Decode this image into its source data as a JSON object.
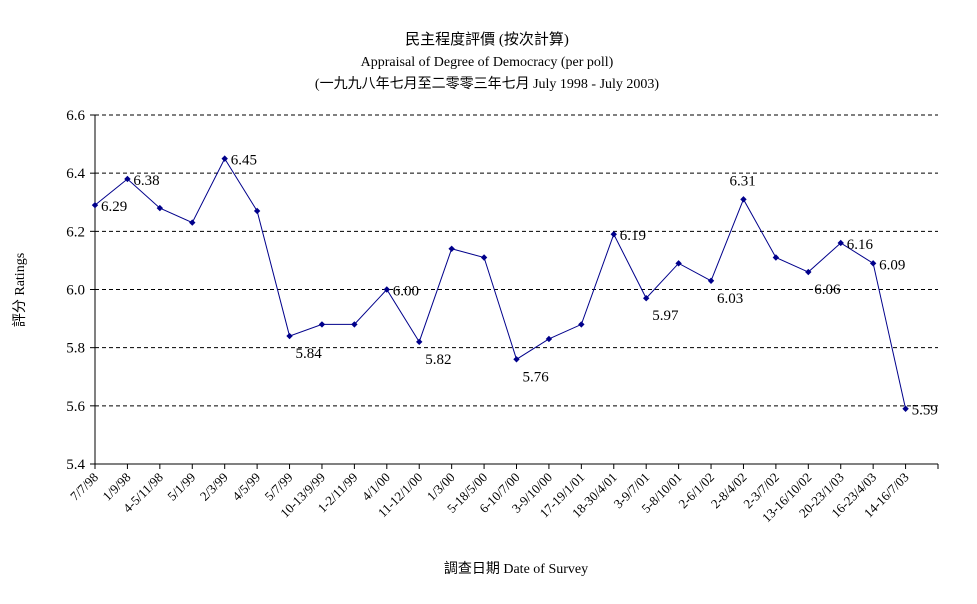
{
  "chart_data": {
    "type": "line",
    "title": "民主程度評價 (按次計算)",
    "subtitle": "Appraisal of Degree of Democracy (per poll)",
    "subtitle2": "(一九九八年七月至二零零三年七月 July 1998 - July 2003)",
    "xlabel": "調查日期 Date of Survey",
    "ylabel": "評分 Ratings",
    "ylim": [
      5.4,
      6.6
    ],
    "yticks": [
      "5.4",
      "5.6",
      "5.8",
      "6.0",
      "6.2",
      "6.4",
      "6.6"
    ],
    "grid": "horizontal-dashed",
    "legend": "none",
    "line_color": "#00008b",
    "categories": [
      "7/7/98",
      "1/9/98",
      "4-5/11/98",
      "5/1/99",
      "2/3/99",
      "4/5/99",
      "5/7/99",
      "10-13/9/99",
      "1-2/11/99",
      "4/1/00",
      "11-12/1/00",
      "1/3/00",
      "5-18/5/00",
      "6-10/7/00",
      "3-9/10/00",
      "17-19/1/01",
      "18-30/4/01",
      "3-9/7/01",
      "5-8/10/01",
      "2-6/1/02",
      "2-8/4/02",
      "2-3/7/02",
      "13-16/10/02",
      "20-23/1/03",
      "16-23/4/03",
      "14-16/7/03"
    ],
    "values": [
      6.29,
      6.38,
      6.28,
      6.23,
      6.45,
      6.27,
      5.84,
      5.88,
      5.88,
      6.0,
      5.82,
      6.14,
      6.11,
      5.76,
      5.83,
      5.88,
      6.19,
      5.97,
      6.09,
      6.03,
      6.31,
      6.11,
      6.06,
      6.16,
      6.09,
      5.59
    ],
    "data_labels": [
      {
        "index": 0,
        "text": "6.29"
      },
      {
        "index": 1,
        "text": "6.38"
      },
      {
        "index": 4,
        "text": "6.45"
      },
      {
        "index": 6,
        "text": "5.84"
      },
      {
        "index": 9,
        "text": "6.00"
      },
      {
        "index": 10,
        "text": "5.82"
      },
      {
        "index": 13,
        "text": "5.76"
      },
      {
        "index": 16,
        "text": "6.19"
      },
      {
        "index": 17,
        "text": "5.97"
      },
      {
        "index": 19,
        "text": "6.03"
      },
      {
        "index": 20,
        "text": "6.31"
      },
      {
        "index": 22,
        "text": "6.06"
      },
      {
        "index": 23,
        "text": "6.16"
      },
      {
        "index": 24,
        "text": "6.09"
      },
      {
        "index": 25,
        "text": "5.59"
      }
    ]
  }
}
